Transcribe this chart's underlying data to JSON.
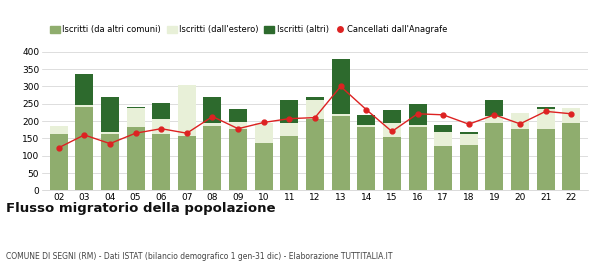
{
  "years": [
    "02",
    "03",
    "04",
    "05",
    "06",
    "07",
    "08",
    "09",
    "10",
    "11",
    "12",
    "13",
    "14",
    "15",
    "16",
    "17",
    "18",
    "19",
    "20",
    "21",
    "22"
  ],
  "iscritti_altri_comuni": [
    163,
    240,
    163,
    183,
    163,
    158,
    185,
    178,
    138,
    158,
    205,
    215,
    183,
    155,
    183,
    128,
    130,
    195,
    178,
    178,
    193
  ],
  "iscritti_estero": [
    22,
    5,
    5,
    55,
    43,
    145,
    10,
    20,
    55,
    35,
    55,
    5,
    5,
    40,
    5,
    40,
    33,
    20,
    45,
    58,
    45
  ],
  "iscritti_altri": [
    0,
    90,
    100,
    3,
    45,
    0,
    75,
    38,
    0,
    68,
    8,
    160,
    30,
    38,
    62,
    22,
    5,
    45,
    0,
    5,
    0
  ],
  "cancellati": [
    123,
    160,
    135,
    165,
    178,
    165,
    213,
    178,
    196,
    207,
    210,
    300,
    233,
    170,
    221,
    218,
    191,
    218,
    192,
    228,
    221
  ],
  "color_altri_comuni": "#8fad6e",
  "color_estero": "#e8f0d8",
  "color_altri": "#2d6a2d",
  "color_cancellati": "#dd2222",
  "title": "Flusso migratorio della popolazione",
  "subtitle": "COMUNE DI SEGNI (RM) - Dati ISTAT (bilancio demografico 1 gen-31 dic) - Elaborazione TUTTITALIA.IT",
  "legend_labels": [
    "Iscritti (da altri comuni)",
    "Iscritti (dall'estero)",
    "Iscritti (altri)",
    "Cancellati dall'Anagrafe"
  ],
  "ylim": [
    0,
    420
  ],
  "yticks": [
    0,
    50,
    100,
    150,
    200,
    250,
    300,
    350,
    400
  ]
}
